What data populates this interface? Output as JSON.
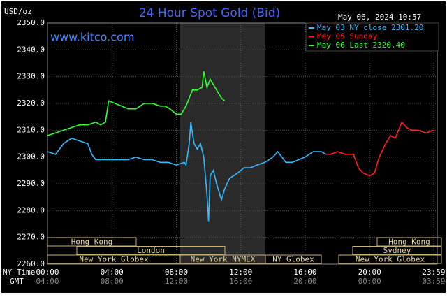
{
  "chart_data": {
    "type": "line",
    "title": "24 Hour Spot Gold (Bid)",
    "ylabel": "USD/oz",
    "watermark": "www.kitco.com",
    "timestamp": "May 06, 2024 10:57",
    "xlim": [
      0,
      24.2
    ],
    "ylim": [
      2260,
      2350
    ],
    "yticks": [
      {
        "value": 2260,
        "label": "2260.0"
      },
      {
        "value": 2270,
        "label": "2270.0"
      },
      {
        "value": 2280,
        "label": "2280.0"
      },
      {
        "value": 2290,
        "label": "2290.0"
      },
      {
        "value": 2300,
        "label": "2300.0"
      },
      {
        "value": 2310,
        "label": "2310.0"
      },
      {
        "value": 2320,
        "label": "2320.0"
      },
      {
        "value": 2330,
        "label": "2330.0"
      },
      {
        "value": 2340,
        "label": "2340.0"
      },
      {
        "value": 2350,
        "label": "2350.0"
      }
    ],
    "xticks": [
      {
        "value": 0,
        "label": "00:00"
      },
      {
        "value": 4,
        "label": "04:00"
      },
      {
        "value": 8,
        "label": "08:00"
      },
      {
        "value": 12,
        "label": "12:00"
      },
      {
        "value": 16,
        "label": "16:00"
      },
      {
        "value": 20,
        "label": "20:00"
      },
      {
        "value": 23.98,
        "label": "23:59"
      }
    ],
    "gmt_labels": [
      "04:00",
      "08:00",
      "12:00",
      "16:00",
      "20:00",
      "00:00",
      "03:59"
    ],
    "xtick_rows": [
      "NY Time",
      "GMT"
    ],
    "sessions": [
      "Hong Kong",
      "London",
      "New York Globex",
      "New York NYMEX",
      "NY Globex",
      "Hong Kong",
      "Sydney",
      "New York Globex"
    ],
    "grid": true,
    "legend": "upper right",
    "series": [
      {
        "name": "May 03 NY close 2301.20",
        "color": "#33bbff",
        "x": [
          0,
          0.5,
          1,
          1.5,
          2,
          2.5,
          2.75,
          3,
          3.5,
          4,
          4.5,
          5,
          5.5,
          6,
          6.5,
          7,
          7.5,
          8,
          8.5,
          8.6,
          8.8,
          8.9,
          9.1,
          9.3,
          9.5,
          9.7,
          9.9,
          10.0,
          10.1,
          10.3,
          10.5,
          10.8,
          11.0,
          11.3,
          11.8,
          12.2,
          12.6,
          13,
          13.5,
          14,
          14.3,
          14.8,
          15.2,
          15.6,
          16,
          16.5,
          17,
          17.3
        ],
        "values": [
          2302,
          2301,
          2305,
          2307,
          2306,
          2305,
          2301,
          2299,
          2299,
          2299,
          2299,
          2299,
          2300,
          2299,
          2299,
          2298,
          2298,
          2297,
          2298,
          2297,
          2305,
          2313,
          2305,
          2303,
          2305,
          2300,
          2286,
          2276,
          2293,
          2295,
          2290,
          2284,
          2288,
          2292,
          2294,
          2296,
          2296,
          2297,
          2298,
          2300,
          2302,
          2298,
          2298,
          2299,
          2300,
          2302,
          2302,
          2301
        ]
      },
      {
        "name": "May 05 Sunday",
        "color": "#ff2020",
        "x": [
          17.3,
          17.6,
          18,
          18.5,
          19,
          19.3,
          19.6,
          20,
          20.3,
          20.6,
          21,
          21.3,
          21.6,
          22,
          22.3,
          22.6,
          23,
          23.5,
          23.98
        ],
        "values": [
          2301,
          2301,
          2302,
          2301,
          2301,
          2296,
          2294,
          2293,
          2294,
          2300,
          2305,
          2308,
          2307,
          2313,
          2311,
          2310,
          2310,
          2309,
          2310
        ]
      },
      {
        "name": "May 06 Last 2320.40",
        "color": "#33ff33",
        "x": [
          0,
          0.5,
          1,
          1.5,
          2,
          2.5,
          3,
          3.3,
          3.6,
          3.8,
          4.2,
          4.6,
          5,
          5.5,
          6,
          6.5,
          7,
          7.3,
          7.6,
          8,
          8.3,
          8.6,
          8.8,
          9,
          9.3,
          9.6,
          9.7,
          9.9,
          10.1,
          10.4,
          10.8,
          11.0
        ],
        "values": [
          2308,
          2309,
          2310,
          2311,
          2312,
          2312,
          2313,
          2312,
          2313,
          2321,
          2320,
          2319,
          2318,
          2318,
          2320,
          2320,
          2319,
          2319,
          2318,
          2316,
          2316,
          2319,
          2322,
          2325,
          2325,
          2326,
          2332,
          2326,
          2329,
          2326,
          2322,
          2321
        ]
      }
    ]
  }
}
